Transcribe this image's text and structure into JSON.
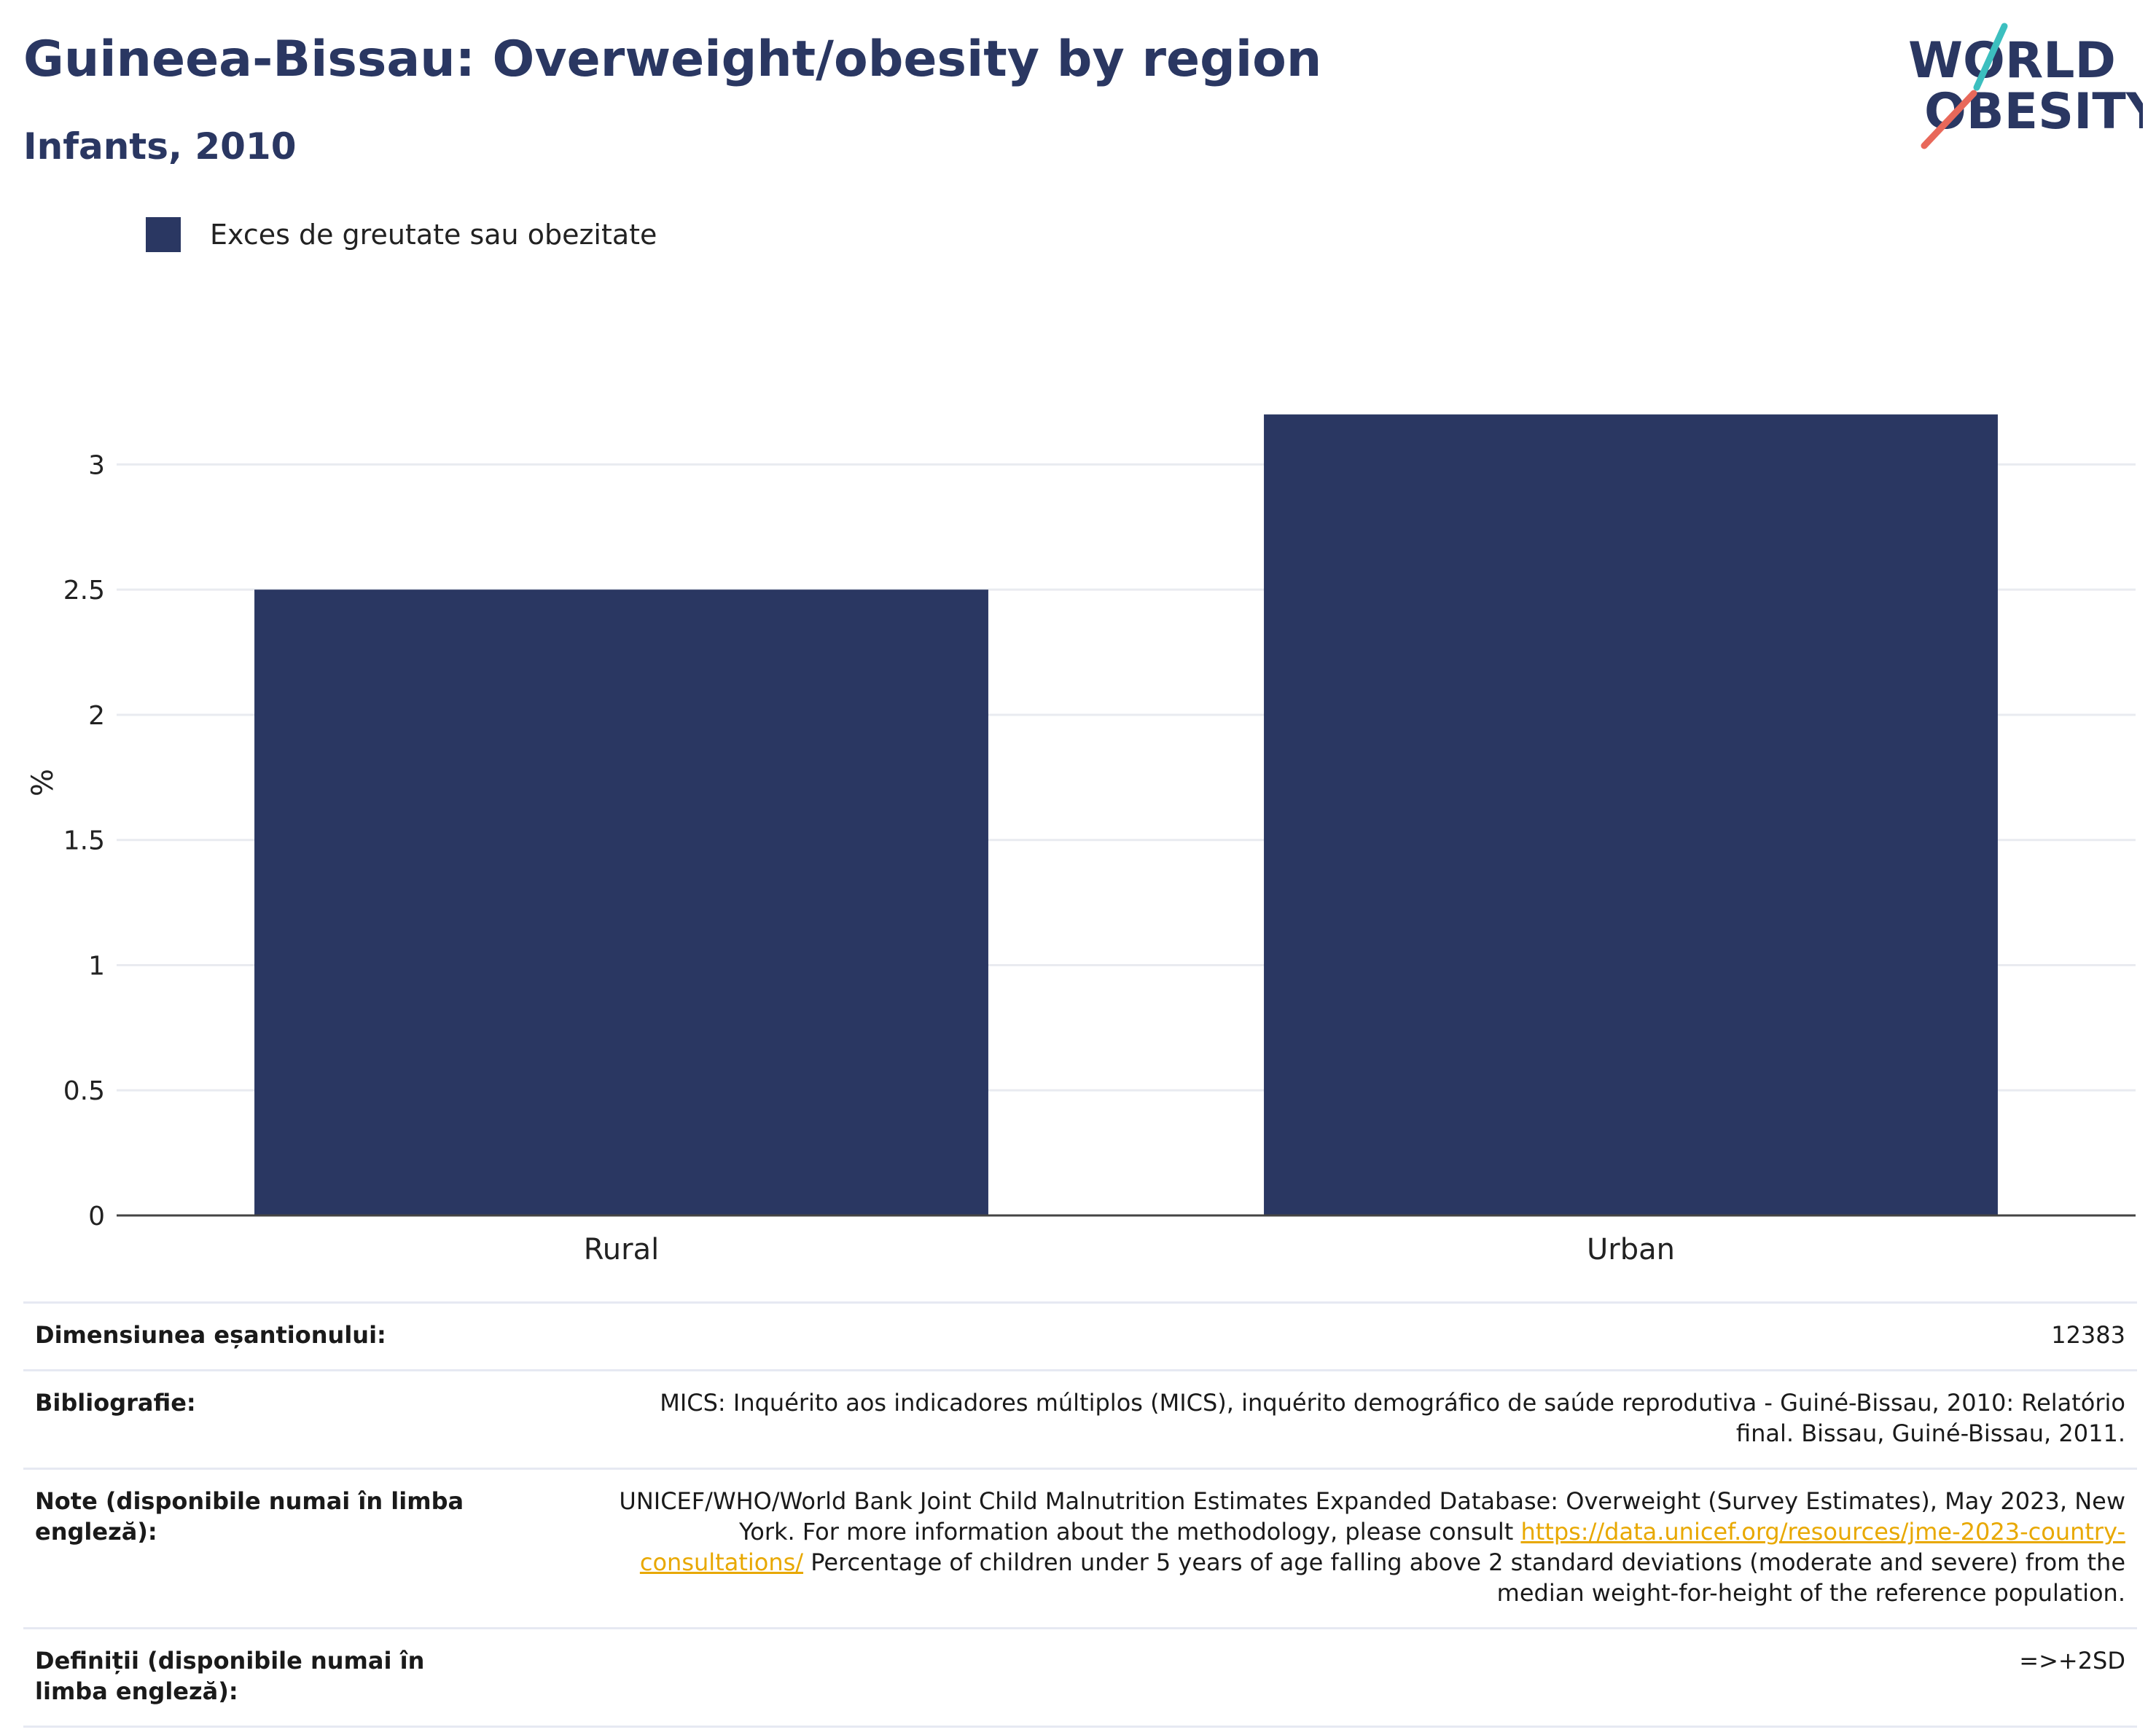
{
  "header": {
    "title": "Guineea-Bissau: Overweight/obesity by region",
    "subtitle": "Infants, 2010"
  },
  "logo": {
    "line1": "WORLD",
    "line2": "OBESITY",
    "colors": {
      "navy": "#2a3762",
      "teal": "#3cbfbf",
      "coral": "#e8685a"
    }
  },
  "legend": {
    "label": "Exces de greutate sau obezitate",
    "color": "#2a3762"
  },
  "chart_data": {
    "type": "bar",
    "categories": [
      "Rural",
      "Urban"
    ],
    "series": [
      {
        "name": "Exces de greutate sau obezitate",
        "values": [
          2.5,
          3.2
        ]
      }
    ],
    "ylabel": "%",
    "xlabel": "",
    "ylim": [
      0,
      3.4
    ],
    "yticks": [
      0,
      0.5,
      1,
      1.5,
      2,
      2.5,
      3
    ],
    "ytick_labels": [
      "0",
      "0.5",
      "1",
      "1.5",
      "2",
      "2.5",
      "3"
    ],
    "bar_color": "#2a3762",
    "grid": true
  },
  "info": {
    "sample_label": "Dimensiunea eșantionului:",
    "sample_value": "12383",
    "bib_label": "Bibliografie:",
    "bib_value": "MICS: Inquérito aos indicadores múltiplos (MICS), inquérito demográfico de saúde reprodutiva - Guiné-Bissau, 2010: Relatório final. Bissau, Guiné-Bissau, 2011.",
    "notes_label": "Note (disponibile numai în limba engleză):",
    "notes_before": "UNICEF/WHO/World Bank Joint Child Malnutrition Estimates Expanded Database: Overweight (Survey Estimates), May 2023, New York. For more information about the methodology, please consult ",
    "notes_link": "https://data.unicef.org/resources/jme-2023-country-consultations/",
    "notes_after": " Percentage of children under 5 years of age falling above 2 standard deviations (moderate and severe) from the median weight-for-height of the reference population.",
    "def_label": "Definiții (disponibile numai în limba engleză):",
    "def_value": "=>+2SD"
  }
}
